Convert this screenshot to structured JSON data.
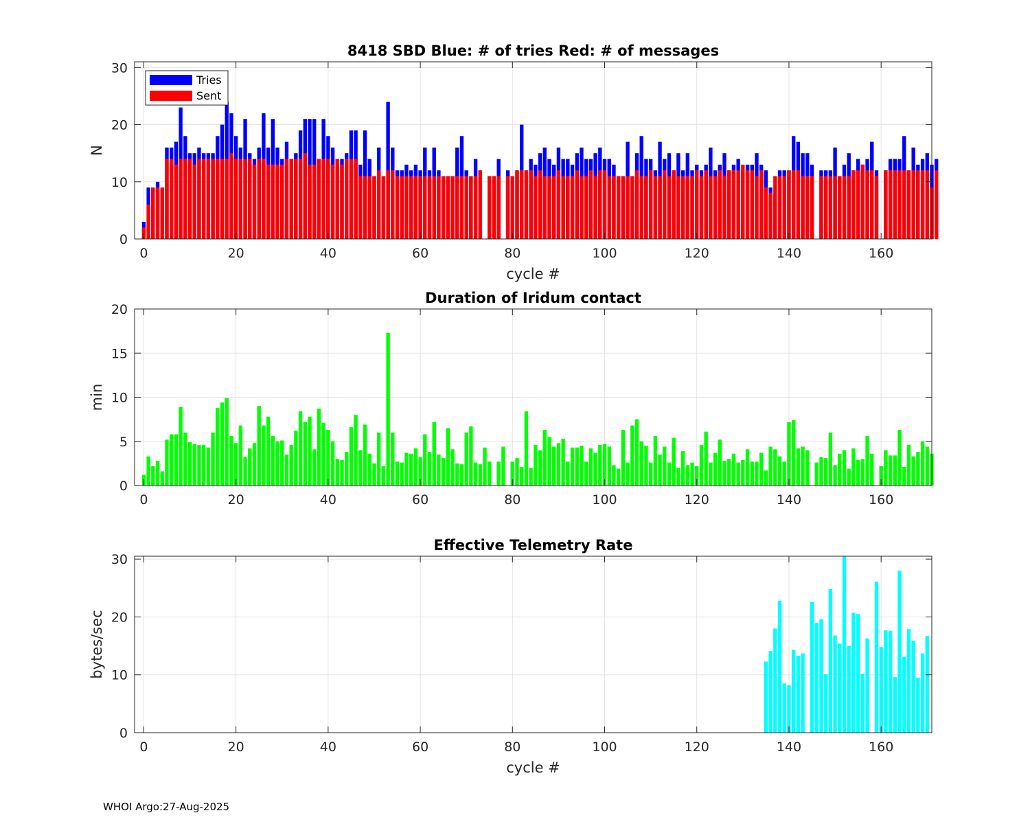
{
  "footer": "WHOI Argo:27-Aug-2025",
  "chart_data": [
    {
      "type": "bar",
      "title": "8418 SBD  Blue: # of tries   Red: # of messages",
      "xlabel": "cycle #",
      "ylabel": "N",
      "xlim": [
        -2,
        171
      ],
      "ylim": [
        0,
        31
      ],
      "xticks": [
        0,
        20,
        40,
        60,
        80,
        100,
        120,
        140,
        160
      ],
      "yticks": [
        0,
        10,
        20,
        30
      ],
      "grid": true,
      "legend": {
        "placement": "top-left",
        "entries": [
          "Tries",
          "Sent"
        ]
      },
      "series": [
        {
          "name": "Tries",
          "color": "#0000ff",
          "values": [
            3,
            9,
            9,
            10,
            9,
            16,
            16,
            17,
            23,
            18,
            15,
            15,
            16,
            15,
            15,
            15,
            18,
            20,
            24,
            22,
            18,
            16,
            21,
            15,
            14,
            16,
            22,
            16,
            21,
            16,
            14,
            17,
            14,
            15,
            19,
            21,
            21,
            21,
            14,
            21,
            18,
            16,
            14,
            14,
            15,
            19,
            19,
            13,
            19,
            14,
            11,
            16,
            11,
            24,
            16,
            12,
            12,
            13,
            12,
            13,
            12,
            16,
            12,
            16,
            12,
            11,
            11,
            11,
            16,
            18,
            12,
            11,
            14,
            12,
            0,
            11,
            11,
            14,
            0,
            12,
            11,
            12,
            20,
            12,
            14,
            13,
            15,
            16,
            14,
            13,
            16,
            14,
            14,
            13,
            15,
            16,
            14,
            14,
            15,
            16,
            14,
            14,
            13,
            11,
            11,
            17,
            11,
            15,
            18,
            14,
            14,
            12,
            17,
            14,
            15,
            12,
            15,
            12,
            15,
            12,
            13,
            12,
            13,
            16,
            12,
            13,
            15,
            12,
            13,
            14,
            12,
            13,
            13,
            15,
            13,
            12,
            9,
            8,
            12,
            12,
            12,
            18,
            17,
            15,
            15,
            13,
            0,
            12,
            12,
            12,
            16,
            11,
            13,
            15,
            12,
            14,
            13,
            14,
            17,
            12,
            0,
            12,
            14,
            14,
            14,
            18,
            12,
            16,
            13,
            14,
            15,
            13,
            14
          ]
        },
        {
          "name": "Sent",
          "color": "#ff0000",
          "values": [
            2,
            6,
            9,
            9,
            9,
            14,
            14,
            13,
            14,
            14,
            14,
            13,
            14,
            14,
            14,
            14,
            14,
            14,
            14,
            15,
            14,
            14,
            14,
            14,
            13,
            14,
            14,
            13,
            13,
            13,
            13,
            14,
            14,
            14,
            14,
            15,
            13,
            13,
            14,
            14,
            14,
            13,
            14,
            13,
            14,
            14,
            14,
            11,
            11,
            11,
            11,
            12,
            11,
            12,
            12,
            11,
            11,
            11,
            11,
            11,
            11,
            11,
            11,
            11,
            11,
            11,
            11,
            11,
            11,
            11,
            11,
            11,
            11,
            12,
            0,
            11,
            11,
            11,
            0,
            11,
            11,
            12,
            12,
            12,
            12,
            11,
            12,
            11,
            11,
            11,
            12,
            11,
            11,
            11,
            12,
            11,
            11,
            12,
            11,
            12,
            12,
            11,
            11,
            11,
            11,
            11,
            11,
            12,
            11,
            11,
            12,
            11,
            11,
            12,
            11,
            12,
            11,
            11,
            11,
            11,
            12,
            11,
            12,
            11,
            11,
            12,
            11,
            12,
            12,
            12,
            13,
            12,
            12,
            11,
            12,
            9,
            8,
            11,
            11,
            11,
            12,
            12,
            12,
            11,
            11,
            11,
            0,
            11,
            11,
            11,
            11,
            11,
            11,
            11,
            12,
            12,
            13,
            12,
            12,
            11,
            0,
            12,
            12,
            12,
            12,
            12,
            12,
            12,
            12,
            12,
            12,
            9,
            12
          ]
        }
      ]
    },
    {
      "type": "bar",
      "title": "Duration of Iridum contact",
      "xlabel": "",
      "ylabel": "min",
      "xlim": [
        -2,
        171
      ],
      "ylim": [
        0,
        20
      ],
      "xticks": [
        0,
        20,
        40,
        60,
        80,
        100,
        120,
        140,
        160
      ],
      "yticks": [
        0,
        5,
        10,
        15,
        20
      ],
      "grid": true,
      "series": [
        {
          "name": "Duration",
          "color": "#00ff00",
          "values": [
            1.2,
            3.3,
            2.2,
            2.8,
            1.6,
            5.2,
            5.8,
            5.8,
            8.9,
            6.0,
            4.9,
            4.7,
            4.6,
            4.6,
            4.3,
            6.0,
            8.8,
            9.4,
            9.9,
            5.6,
            4.8,
            6.8,
            3.2,
            4.2,
            4.8,
            9.0,
            6.8,
            7.8,
            5.6,
            5.0,
            5.1,
            3.5,
            4.6,
            6.2,
            8.4,
            7.2,
            7.8,
            4.1,
            8.7,
            7.1,
            6.3,
            5.0,
            3.0,
            2.9,
            3.8,
            6.6,
            8.0,
            4.0,
            6.9,
            3.6,
            2.5,
            6.0,
            2.2,
            17.3,
            6.0,
            2.7,
            2.6,
            3.7,
            3.6,
            4.2,
            3.2,
            5.8,
            3.8,
            7.2,
            3.5,
            3.1,
            6.5,
            4.1,
            2.5,
            2.4,
            6.0,
            6.7,
            2.6,
            2.4,
            4.3,
            2.7,
            0,
            2.7,
            4.4,
            0,
            2.7,
            3.1,
            2.1,
            8.4,
            2.0,
            4.6,
            4.0,
            6.3,
            5.5,
            4.4,
            4.8,
            5.3,
            2.7,
            4.3,
            4.3,
            4.5,
            2.7,
            4.2,
            3.7,
            4.6,
            4.7,
            4.4,
            2.3,
            1.9,
            6.3,
            2.6,
            6.8,
            7.5,
            5.0,
            4.5,
            2.6,
            5.6,
            3.5,
            4.4,
            2.6,
            5.4,
            2.0,
            3.9,
            2.3,
            2.6,
            2.2,
            4.6,
            6.1,
            2.6,
            3.7,
            5.2,
            2.8,
            3.0,
            3.6,
            2.6,
            2.9,
            4.1,
            2.7,
            2.7,
            3.7,
            1.7,
            4.4,
            4.1,
            3.3,
            2.7,
            7.2,
            7.4,
            4.2,
            4.4,
            4.0,
            0,
            2.6,
            3.2,
            3.1,
            6.0,
            2.3,
            3.6,
            4.0,
            1.9,
            4.2,
            2.9,
            3.0,
            5.6,
            3.6,
            0,
            2.2,
            4.0,
            3.4,
            3.4,
            6.3,
            2.1,
            4.6,
            3.3,
            3.8,
            5.0,
            4.4,
            3.6
          ]
        }
      ]
    },
    {
      "type": "bar",
      "title": "Effective Telemetry Rate",
      "xlabel": "cycle #",
      "ylabel": "bytes/sec",
      "xlim": [
        -2,
        171
      ],
      "ylim": [
        0,
        30.5
      ],
      "xticks": [
        0,
        20,
        40,
        60,
        80,
        100,
        120,
        140,
        160
      ],
      "yticks": [
        0,
        10,
        20,
        30
      ],
      "grid": true,
      "series": [
        {
          "name": "Rate",
          "color": "#00ffff",
          "x_start": 135,
          "values": [
            12.3,
            14.1,
            18.0,
            22.8,
            8.5,
            8.2,
            14.3,
            13.3,
            13.7,
            0,
            22.6,
            19.0,
            19.6,
            10.1,
            24.8,
            16.8,
            15.4,
            30.5,
            15.0,
            20.7,
            20.5,
            10.2,
            16.3,
            0,
            26.1,
            14.8,
            17.7,
            17.6,
            9.6,
            28.0,
            13.1,
            17.9,
            15.9,
            9.5,
            13.7,
            16.7
          ]
        }
      ]
    }
  ]
}
